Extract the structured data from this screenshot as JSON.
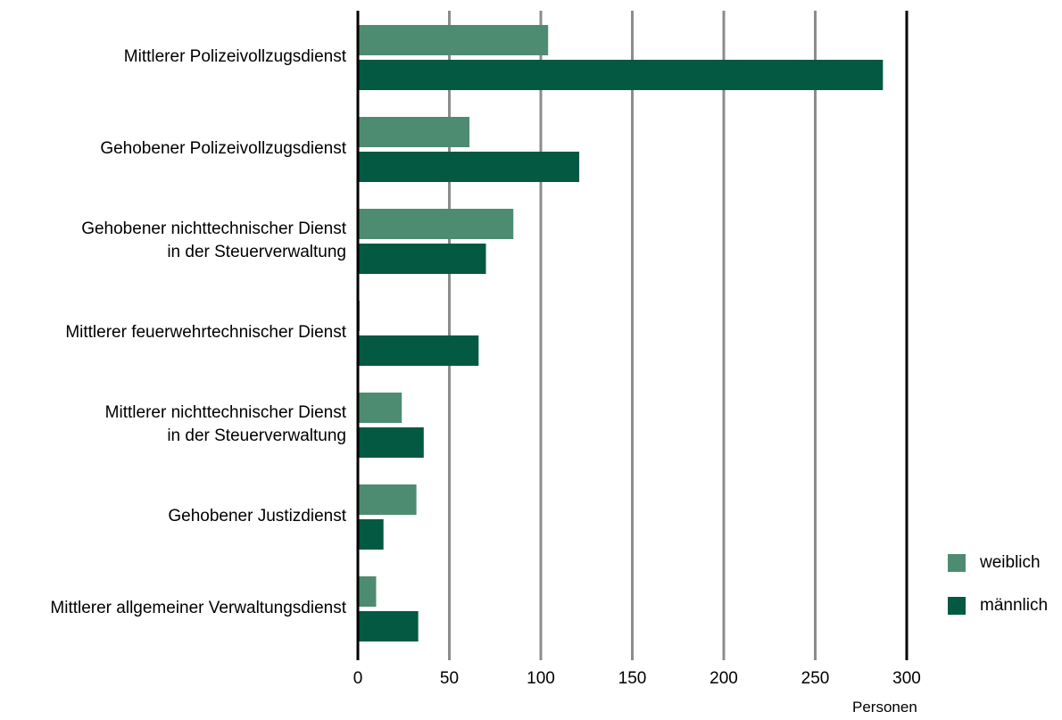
{
  "chart_data": {
    "type": "bar",
    "orientation": "horizontal",
    "categories": [
      [
        "Mittlerer Polizeivollzugsdienst"
      ],
      [
        "Gehobener Polizeivollzugsdienst"
      ],
      [
        "Gehobener nichttechnischer Dienst",
        "in der Steuerverwaltung"
      ],
      [
        "Mittlerer feuerwehrtechnischer Dienst"
      ],
      [
        "Mittlerer nichttechnischer Dienst",
        "in der Steuerverwaltung"
      ],
      [
        "Gehobener Justizdienst"
      ],
      [
        "Mittlerer allgemeiner Verwaltungsdienst"
      ]
    ],
    "series": [
      {
        "name": "weiblich",
        "color": "#4e8c72",
        "values": [
          104,
          61,
          85,
          1,
          24,
          32,
          10
        ]
      },
      {
        "name": "männlich",
        "color": "#035942",
        "values": [
          287,
          121,
          70,
          66,
          36,
          14,
          33
        ]
      }
    ],
    "xlim": [
      0,
      300
    ],
    "xticks": [
      0,
      50,
      100,
      150,
      200,
      250,
      300
    ],
    "xlabel": "Personen",
    "grid": true,
    "legend_position": "bottom-right"
  }
}
